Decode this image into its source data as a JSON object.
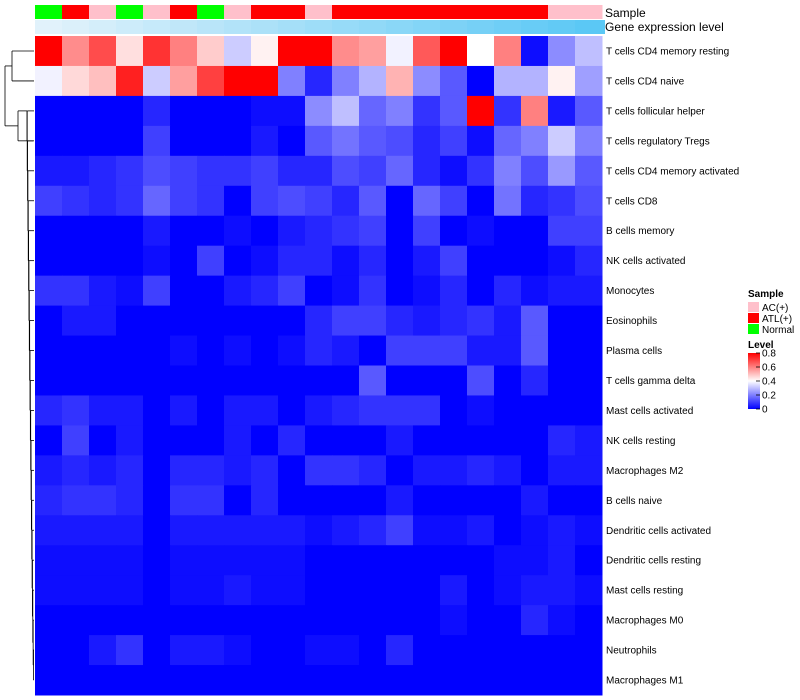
{
  "chart_data": {
    "type": "heatmap",
    "annotation_tracks": {
      "sample_label": "Sample",
      "gene_label": "Gene expression level",
      "sample_groups": [
        "Normal",
        "ATL(+)",
        "AC(+)",
        "Normal",
        "AC(+)",
        "ATL(+)",
        "Normal",
        "AC(+)",
        "ATL(+)",
        "ATL(+)",
        "AC(+)",
        "ATL(+)",
        "ATL(+)",
        "ATL(+)",
        "ATL(+)",
        "ATL(+)",
        "ATL(+)",
        "ATL(+)",
        "ATL(+)",
        "AC(+)",
        "AC(+)"
      ],
      "gene_level": [
        0.08,
        0.1,
        0.12,
        0.14,
        0.16,
        0.18,
        0.2,
        0.22,
        0.24,
        0.26,
        0.28,
        0.3,
        0.32,
        0.34,
        0.36,
        0.38,
        0.4,
        0.42,
        0.44,
        0.46,
        0.48
      ]
    },
    "rows": [
      "T cells CD4 memory resting",
      "T cells CD4 naive",
      "T cells follicular helper",
      "T cells regulatory  Tregs",
      "T cells CD4 memory activated",
      "T cells CD8",
      "B cells memory",
      "NK cells activated",
      "Monocytes",
      "Eosinophils",
      "Plasma cells",
      "T cells gamma delta",
      "Mast cells activated",
      "NK cells resting",
      "Macrophages M2",
      "B cells naive",
      "Dendritic cells activated",
      "Dendritic cells resting",
      "Mast cells resting",
      "Macrophages M0",
      "Neutrophils",
      "Macrophages M1"
    ],
    "values": [
      [
        0.8,
        0.58,
        0.68,
        0.45,
        0.72,
        0.6,
        0.48,
        0.32,
        0.42,
        0.8,
        0.8,
        0.58,
        0.55,
        0.38,
        0.66,
        0.8,
        0.4,
        0.6,
        0.02,
        0.22,
        0.3
      ],
      [
        0.38,
        0.46,
        0.5,
        0.75,
        0.32,
        0.55,
        0.7,
        0.8,
        0.8,
        0.2,
        0.06,
        0.2,
        0.28,
        0.52,
        0.22,
        0.14,
        0.0,
        0.28,
        0.28,
        0.42,
        0.25
      ],
      [
        0.0,
        0.0,
        0.0,
        0.0,
        0.06,
        0.0,
        0.0,
        0.0,
        0.02,
        0.02,
        0.22,
        0.3,
        0.16,
        0.2,
        0.08,
        0.14,
        0.8,
        0.08,
        0.6,
        0.04,
        0.14
      ],
      [
        0.0,
        0.0,
        0.0,
        0.0,
        0.1,
        0.0,
        0.0,
        0.0,
        0.04,
        0.0,
        0.14,
        0.18,
        0.14,
        0.12,
        0.06,
        0.1,
        0.02,
        0.16,
        0.2,
        0.32,
        0.2
      ],
      [
        0.04,
        0.04,
        0.06,
        0.08,
        0.12,
        0.1,
        0.08,
        0.08,
        0.1,
        0.06,
        0.06,
        0.12,
        0.1,
        0.16,
        0.06,
        0.02,
        0.08,
        0.2,
        0.12,
        0.24,
        0.14
      ],
      [
        0.1,
        0.08,
        0.06,
        0.08,
        0.16,
        0.1,
        0.08,
        0.0,
        0.1,
        0.12,
        0.1,
        0.06,
        0.14,
        0.0,
        0.16,
        0.1,
        0.0,
        0.18,
        0.06,
        0.08,
        0.12
      ],
      [
        0.0,
        0.0,
        0.0,
        0.0,
        0.04,
        0.0,
        0.0,
        0.02,
        0.0,
        0.04,
        0.06,
        0.08,
        0.1,
        0.0,
        0.1,
        0.0,
        0.02,
        0.0,
        0.0,
        0.1,
        0.1
      ],
      [
        0.0,
        0.0,
        0.0,
        0.0,
        0.02,
        0.0,
        0.1,
        0.0,
        0.02,
        0.06,
        0.06,
        0.02,
        0.06,
        0.0,
        0.04,
        0.1,
        0.0,
        0.0,
        0.0,
        0.02,
        0.06
      ],
      [
        0.08,
        0.08,
        0.04,
        0.02,
        0.1,
        0.0,
        0.0,
        0.04,
        0.06,
        0.1,
        0.0,
        0.02,
        0.08,
        0.0,
        0.02,
        0.06,
        0.0,
        0.06,
        0.02,
        0.04,
        0.04
      ],
      [
        0.0,
        0.04,
        0.04,
        0.0,
        0.0,
        0.0,
        0.0,
        0.0,
        0.0,
        0.0,
        0.06,
        0.1,
        0.1,
        0.06,
        0.04,
        0.06,
        0.08,
        0.04,
        0.14,
        0.0,
        0.0
      ],
      [
        0.0,
        0.0,
        0.0,
        0.0,
        0.0,
        0.02,
        0.0,
        0.02,
        0.0,
        0.02,
        0.06,
        0.04,
        0.0,
        0.1,
        0.1,
        0.1,
        0.04,
        0.04,
        0.14,
        0.0,
        0.0
      ],
      [
        0.0,
        0.0,
        0.0,
        0.0,
        0.0,
        0.0,
        0.0,
        0.0,
        0.0,
        0.0,
        0.0,
        0.0,
        0.14,
        0.0,
        0.0,
        0.0,
        0.12,
        0.0,
        0.06,
        0.0,
        0.0
      ],
      [
        0.06,
        0.08,
        0.04,
        0.04,
        0.0,
        0.04,
        0.0,
        0.04,
        0.04,
        0.0,
        0.04,
        0.06,
        0.08,
        0.08,
        0.08,
        0.0,
        0.02,
        0.0,
        0.0,
        0.0,
        0.0
      ],
      [
        0.0,
        0.1,
        0.0,
        0.04,
        0.0,
        0.0,
        0.0,
        0.04,
        0.0,
        0.06,
        0.0,
        0.0,
        0.0,
        0.04,
        0.0,
        0.0,
        0.0,
        0.0,
        0.0,
        0.06,
        0.04
      ],
      [
        0.04,
        0.06,
        0.04,
        0.06,
        0.0,
        0.06,
        0.06,
        0.04,
        0.06,
        0.0,
        0.08,
        0.08,
        0.06,
        0.0,
        0.04,
        0.04,
        0.06,
        0.04,
        0.0,
        0.04,
        0.04
      ],
      [
        0.06,
        0.08,
        0.08,
        0.06,
        0.0,
        0.08,
        0.08,
        0.0,
        0.06,
        0.0,
        0.0,
        0.0,
        0.0,
        0.04,
        0.0,
        0.0,
        0.0,
        0.0,
        0.04,
        0.0,
        0.0
      ],
      [
        0.04,
        0.04,
        0.04,
        0.04,
        0.0,
        0.04,
        0.04,
        0.04,
        0.04,
        0.04,
        0.02,
        0.04,
        0.06,
        0.1,
        0.02,
        0.02,
        0.04,
        0.0,
        0.02,
        0.04,
        0.02
      ],
      [
        0.02,
        0.02,
        0.02,
        0.02,
        0.0,
        0.02,
        0.02,
        0.02,
        0.02,
        0.02,
        0.0,
        0.0,
        0.0,
        0.0,
        0.0,
        0.0,
        0.0,
        0.02,
        0.02,
        0.04,
        0.0
      ],
      [
        0.02,
        0.02,
        0.02,
        0.02,
        0.0,
        0.02,
        0.02,
        0.04,
        0.02,
        0.02,
        0.0,
        0.0,
        0.0,
        0.0,
        0.0,
        0.04,
        0.0,
        0.02,
        0.04,
        0.04,
        0.02
      ],
      [
        0.0,
        0.0,
        0.0,
        0.0,
        0.0,
        0.0,
        0.0,
        0.0,
        0.0,
        0.0,
        0.0,
        0.0,
        0.0,
        0.0,
        0.0,
        0.02,
        0.0,
        0.0,
        0.06,
        0.02,
        0.0
      ],
      [
        0.0,
        0.0,
        0.04,
        0.08,
        0.0,
        0.04,
        0.04,
        0.02,
        0.0,
        0.0,
        0.02,
        0.02,
        0.0,
        0.06,
        0.0,
        0.0,
        0.0,
        0.0,
        0.0,
        0.0,
        0.0
      ],
      [
        0.0,
        0.0,
        0.0,
        0.0,
        0.0,
        0.0,
        0.0,
        0.0,
        0.0,
        0.0,
        0.0,
        0.0,
        0.0,
        0.0,
        0.0,
        0.0,
        0.0,
        0.0,
        0.0,
        0.0,
        0.0
      ]
    ],
    "color_scale": {
      "low": "#0000ff",
      "mid": "#ffffff",
      "high": "#ff0000",
      "min": 0,
      "mid_value": 0.4,
      "max": 0.8
    },
    "dendrogram": "rows clustered (hierarchical)"
  },
  "legend": {
    "sample_title": "Sample",
    "sample_items": [
      {
        "label": "AC(+)",
        "color": "#ffc0cb"
      },
      {
        "label": "ATL(+)",
        "color": "#ff0000"
      },
      {
        "label": "Normal",
        "color": "#00ff00"
      }
    ],
    "level_title": "Level",
    "level_ticks": [
      "0.8",
      "0.6",
      "0.4",
      "0.2",
      "0"
    ],
    "level_tick_values": [
      0.8,
      0.6,
      0.4,
      0.2,
      0
    ]
  },
  "colors": {
    "gene_track_light": "#e8f4fb",
    "gene_track_dark": "#5bc8f5",
    "dendrogram_line": "#000000"
  }
}
